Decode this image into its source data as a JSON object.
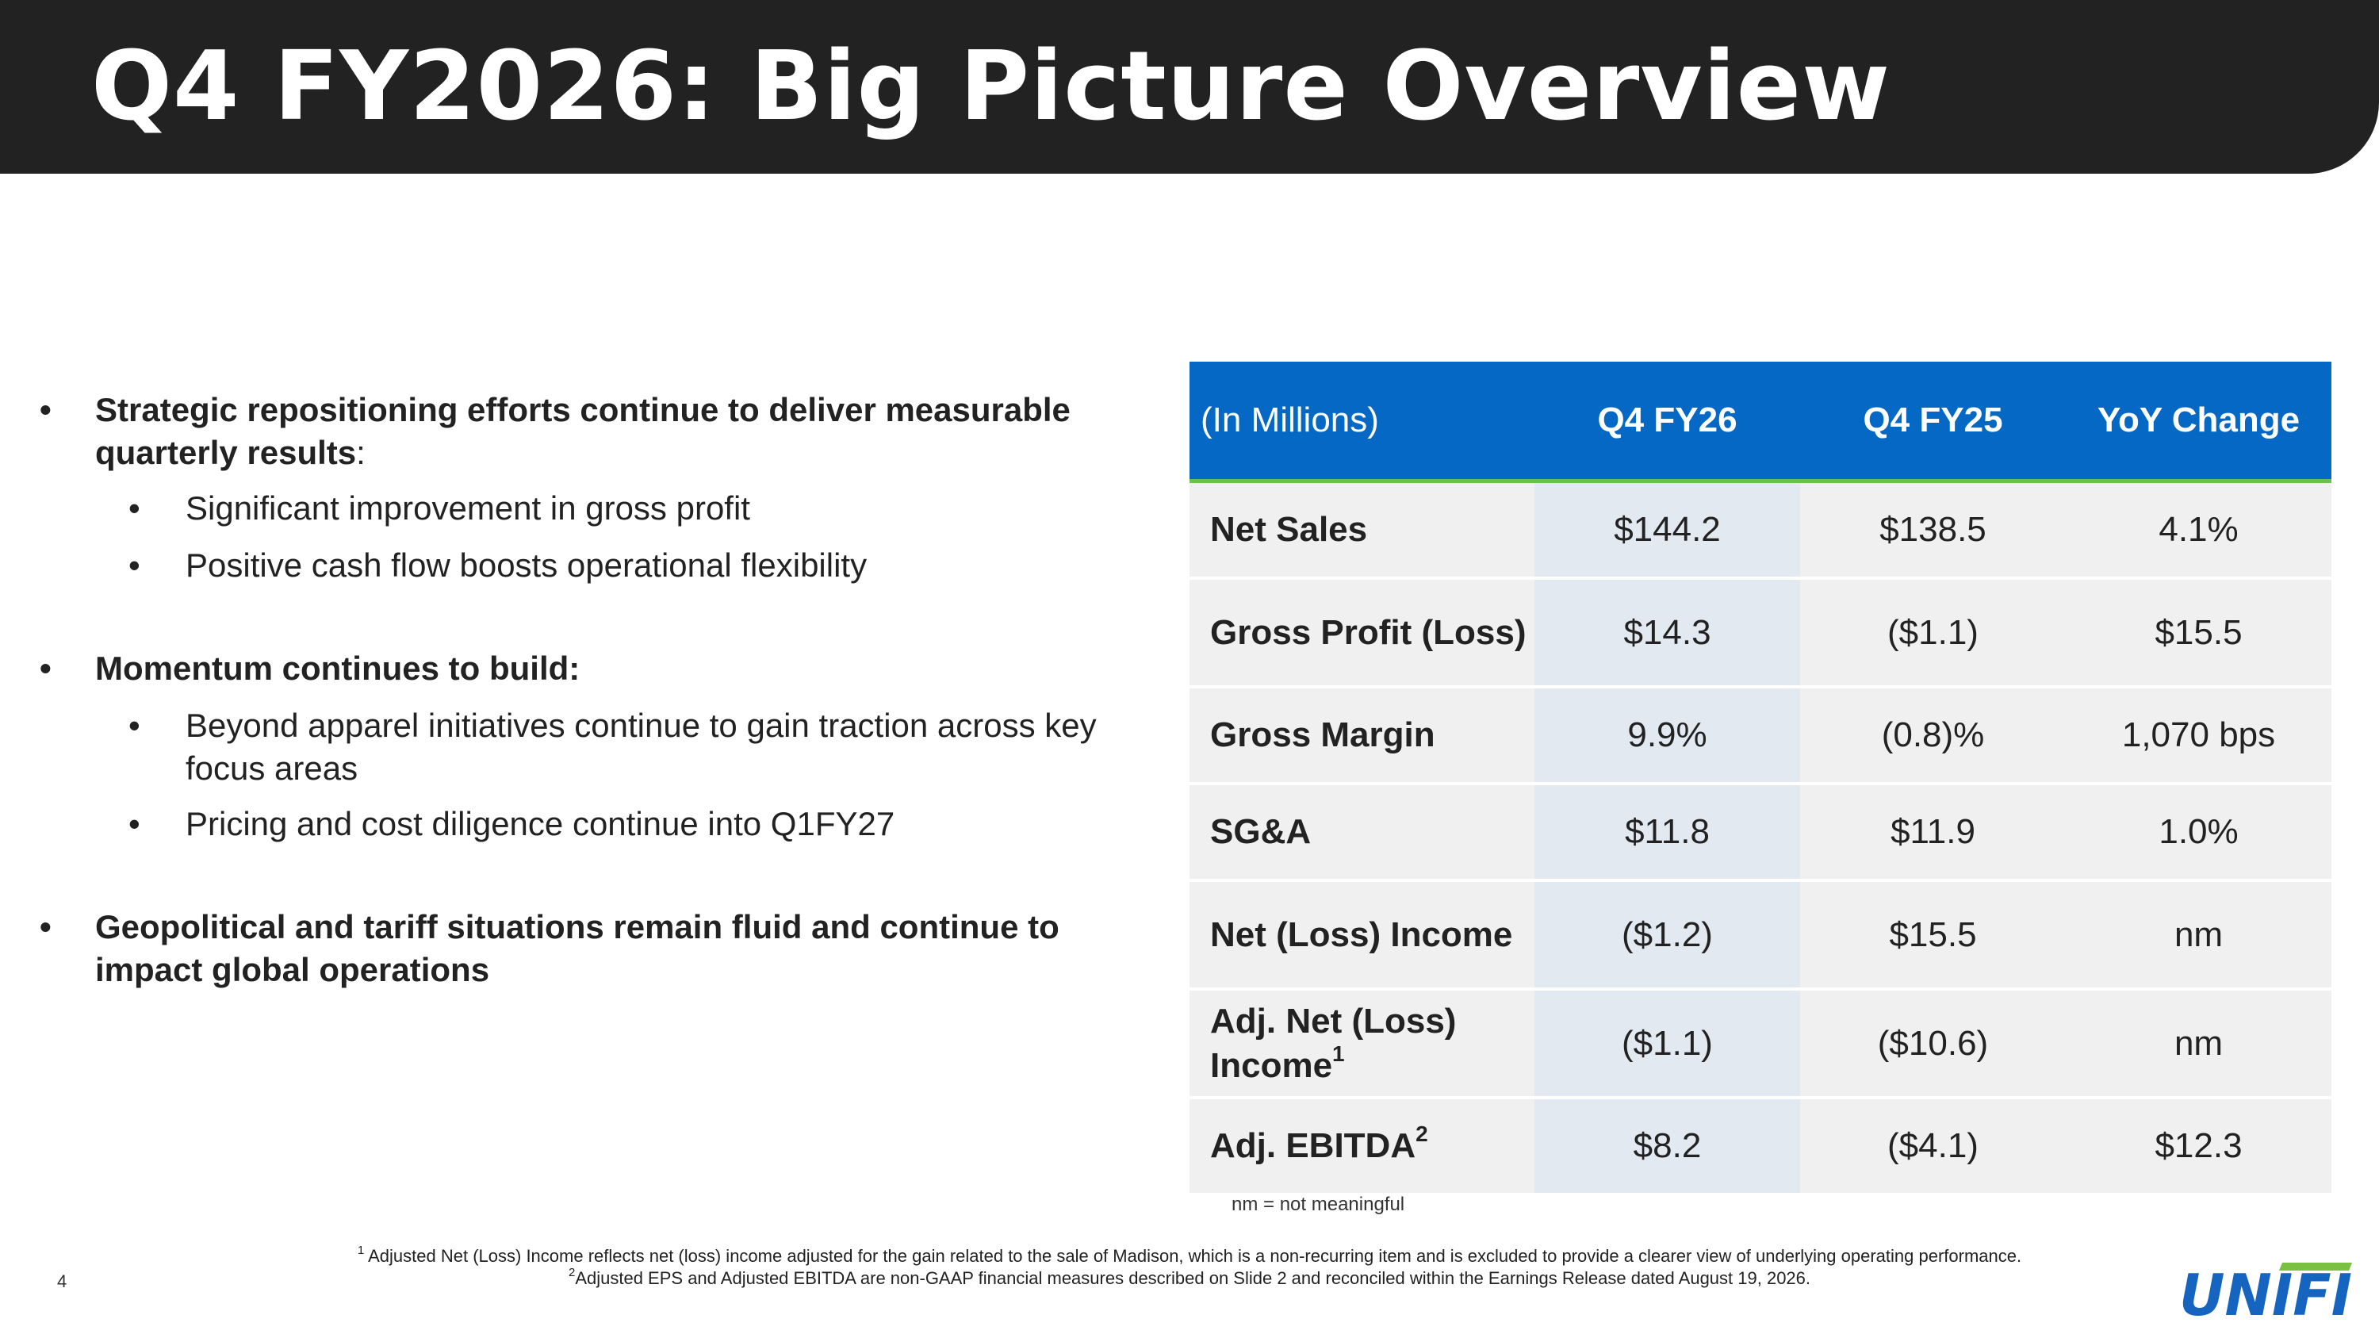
{
  "header": {
    "title": "Q4 FY2026: Big Picture Overview"
  },
  "bullets": {
    "b1_text": "Strategic repositioning efforts continue to deliver measurable quarterly results",
    "b1_suffix": ":",
    "b1_subs": [
      "Significant improvement in gross profit",
      "Positive cash flow boosts operational flexibility"
    ],
    "b2_text": "Momentum continues to build:",
    "b2_subs": [
      "Beyond apparel initiatives continue to gain traction across key focus areas",
      "Pricing and cost diligence continue into Q1FY27"
    ],
    "b3_text": "Geopolitical and tariff situations remain fluid and continue to impact global operations",
    "bullet_char": "•"
  },
  "table": {
    "head": {
      "col0": "(In Millions)",
      "col1": "Q4 FY26",
      "col2": "Q4 FY25",
      "col3": "YoY Change"
    },
    "rows": [
      {
        "label": "Net Sales",
        "sup": "",
        "fy26": "$144.2",
        "fy25": "$138.5",
        "change": "4.1%"
      },
      {
        "label": "Gross Profit (Loss)",
        "sup": "",
        "fy26": "$14.3",
        "fy25": "($1.1)",
        "change": "$15.5"
      },
      {
        "label": "Gross Margin",
        "sup": "",
        "fy26": "9.9%",
        "fy25": "(0.8)%",
        "change": "1,070 bps"
      },
      {
        "label": "SG&A",
        "sup": "",
        "fy26": "$11.8",
        "fy25": "$11.9",
        "change": "1.0%"
      },
      {
        "label": "Net (Loss) Income",
        "sup": "",
        "fy26": "($1.2)",
        "fy25": "$15.5",
        "change": "nm"
      },
      {
        "label": "Adj. Net (Loss) Income",
        "sup": "1",
        "fy26": "($1.1)",
        "fy25": "($10.6)",
        "change": "nm"
      },
      {
        "label": "Adj. EBITDA",
        "sup": "2",
        "fy26": "$8.2",
        "fy25": "($4.1)",
        "change": "$12.3"
      }
    ],
    "note": "nm = not meaningful"
  },
  "footnotes": {
    "f1_mark": "1",
    "f1_text": " Adjusted Net (Loss) Income reflects net (loss) income adjusted for the gain related to the sale of Madison, which is a non-recurring item and is excluded to provide a clearer view of underlying operating performance.",
    "f2_mark": "2",
    "f2_text": "Adjusted EPS and Adjusted EBITDA are non-GAAP financial measures described on Slide 2 and reconciled within the Earnings Release dated August 19, 2026."
  },
  "page_number": "4",
  "logo": {
    "text": "UNIFI",
    "color_blue": "#1565c0",
    "color_green": "#7ac143"
  },
  "colors": {
    "header_bg": "#222222",
    "table_head": "#0568c4",
    "accent_green": "#6cc04a",
    "highlight_col": "#e3e9f1",
    "row_bg": "#f0f0f0"
  }
}
